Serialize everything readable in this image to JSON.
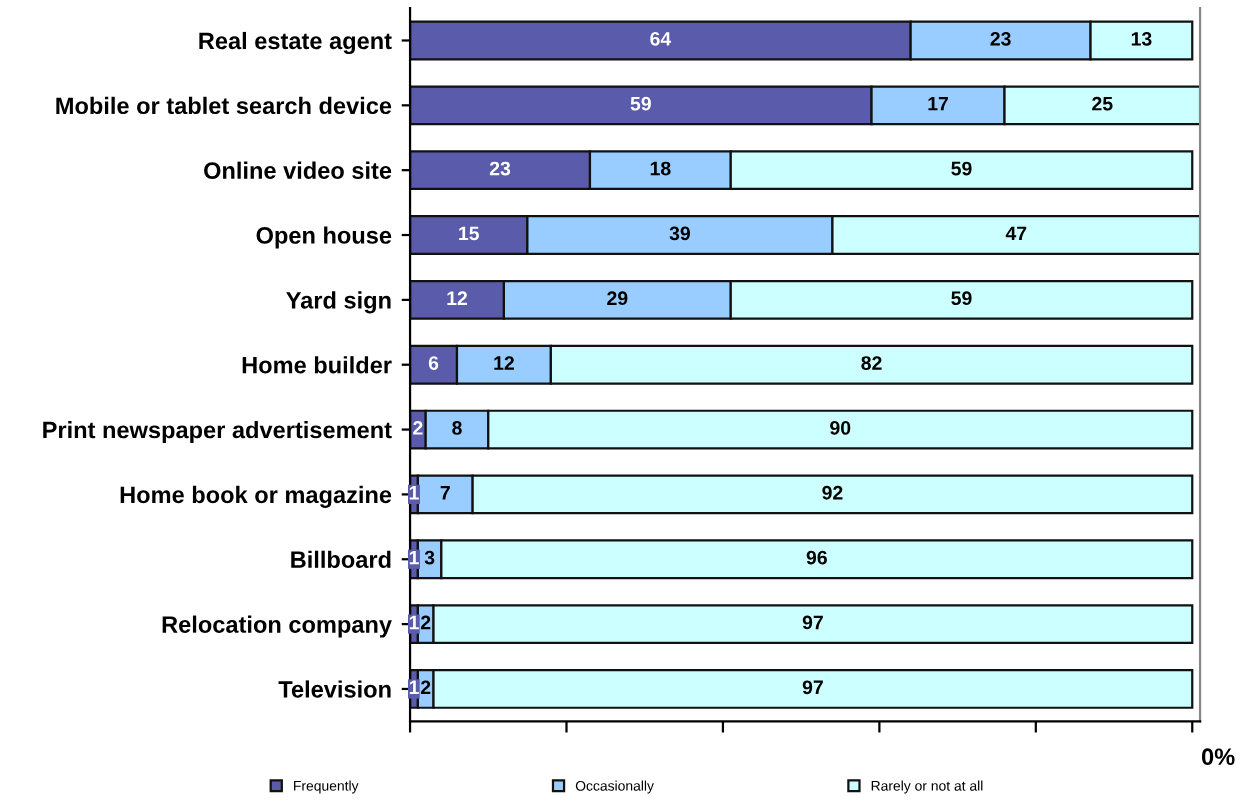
{
  "chart_data": {
    "type": "bar",
    "orientation": "horizontal",
    "stacked": true,
    "data_labels": true,
    "legend": "bottom",
    "grid": false,
    "categories": [
      "Real estate agent",
      "Mobile or tablet search device",
      "Online video site",
      "Open house",
      "Yard sign",
      "Home builder",
      "Print newspaper advertisement",
      "Home book or magazine",
      "Billboard",
      "Relocation company",
      "Television"
    ],
    "series": [
      {
        "name": "Frequently",
        "color": "#5b5bab",
        "values": [
          64,
          59,
          23,
          15,
          12,
          6,
          2,
          1,
          1,
          1,
          1
        ]
      },
      {
        "name": "Occasionally",
        "color": "#99ccff",
        "values": [
          23,
          17,
          18,
          39,
          29,
          12,
          8,
          7,
          3,
          2,
          2
        ]
      },
      {
        "name": "Rarely or not at all",
        "color": "#ccffff",
        "values": [
          13,
          25,
          59,
          47,
          59,
          82,
          90,
          92,
          96,
          97,
          97
        ]
      }
    ],
    "xlim": [
      0,
      101
    ],
    "xticks": [
      {
        "value": 0,
        "label": null
      },
      {
        "value": 20,
        "label": null
      },
      {
        "value": 40,
        "label": null
      },
      {
        "value": 60,
        "label": null
      },
      {
        "value": 80,
        "label": null
      },
      {
        "value": 100,
        "label": null
      }
    ],
    "annotations": [
      "0%"
    ]
  }
}
